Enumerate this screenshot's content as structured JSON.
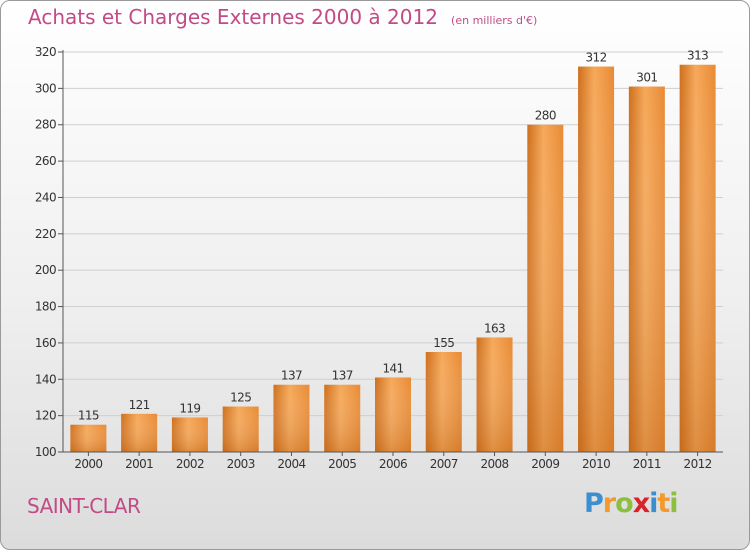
{
  "title": "Achats et Charges Externes 2000 à 2012",
  "subtitle": "(en milliers d'€)",
  "commune": "SAINT-CLAR",
  "logo": {
    "text": "Proxiti",
    "letters": [
      {
        "ch": "P",
        "color": "#3a8fd1"
      },
      {
        "ch": "r",
        "color": "#f29a2e"
      },
      {
        "ch": "o",
        "color": "#8dbf3f"
      },
      {
        "ch": "x",
        "color": "#d8232a"
      },
      {
        "ch": "i",
        "color": "#3a8fd1"
      },
      {
        "ch": "t",
        "color": "#f29a2e"
      },
      {
        "ch": "i",
        "color": "#8dbf3f"
      }
    ]
  },
  "colors": {
    "title": "#c24b87",
    "bar_light": "#f6a95a",
    "bar_dark": "#cf6f1c",
    "grid": "#cfcfcf"
  },
  "chart_data": {
    "type": "bar",
    "categories": [
      "2000",
      "2001",
      "2002",
      "2003",
      "2004",
      "2005",
      "2006",
      "2007",
      "2008",
      "2009",
      "2010",
      "2011",
      "2012"
    ],
    "values": [
      115,
      121,
      119,
      125,
      137,
      137,
      141,
      155,
      163,
      280,
      312,
      301,
      313
    ],
    "ylim": [
      100,
      320
    ],
    "yticks": [
      100,
      120,
      140,
      160,
      180,
      200,
      220,
      240,
      260,
      280,
      300,
      320
    ],
    "grid": true,
    "xlabel": "",
    "ylabel": ""
  }
}
